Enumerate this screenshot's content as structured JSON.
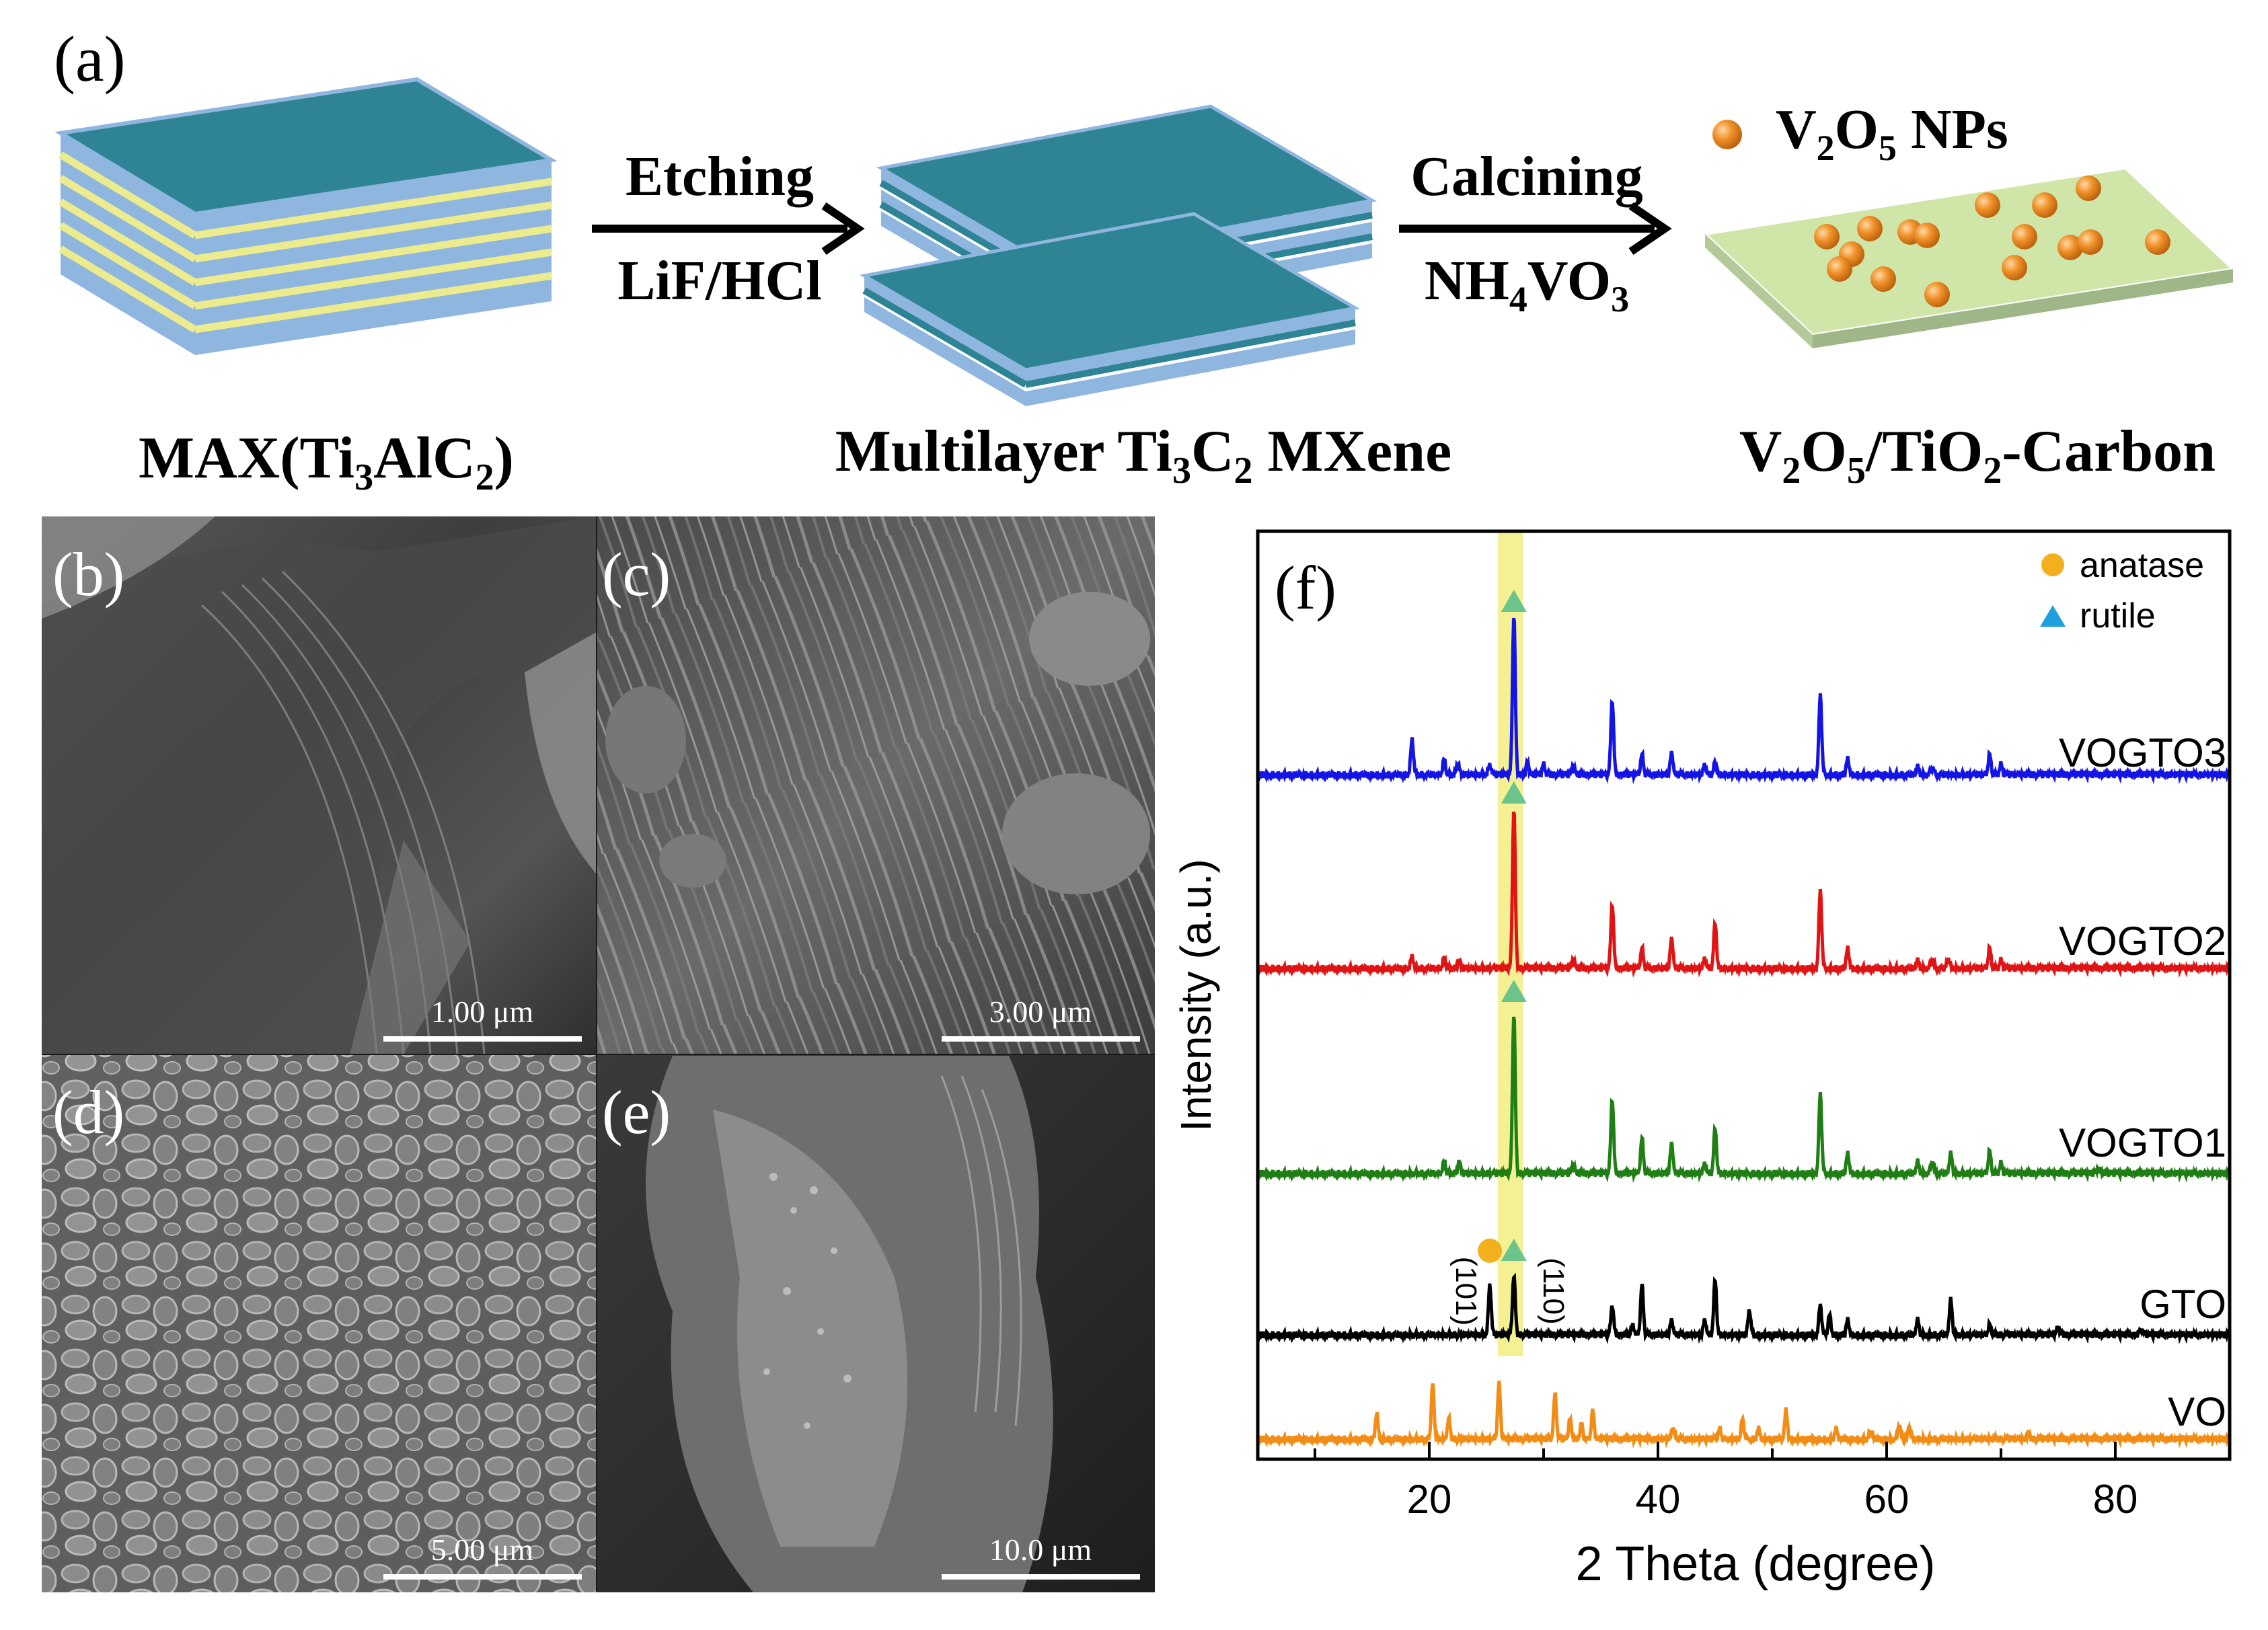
{
  "panels": {
    "a": "(a)",
    "b": "(b)",
    "c": "(c)",
    "d": "(d)",
    "e": "(e)",
    "f": "(f)"
  },
  "schematic": {
    "step1_top": "Etching",
    "step1_bottom": "LiF/HCl",
    "step2_top": "Calcining",
    "step2_bottom_main": "NH",
    "step2_bottom_sub1": "4",
    "step2_bottom_mid": "VO",
    "step2_bottom_sub2": "3",
    "np_label_v": "V",
    "np_label_sub1": "2",
    "np_label_o": "O",
    "np_label_sub2": "5",
    "np_label_rest": " NPs",
    "label_max_a": "MAX(Ti",
    "label_max_s1": "3",
    "label_max_b": "AlC",
    "label_max_s2": "2",
    "label_max_c": ")",
    "label_mx_a": "Multilayer Ti",
    "label_mx_s1": "3",
    "label_mx_b": "C",
    "label_mx_s2": "2",
    "label_mx_c": " MXene",
    "label_vo_a": "V",
    "label_vo_s1": "2",
    "label_vo_b": "O",
    "label_vo_s2": "5",
    "label_vo_c": "/TiO",
    "label_vo_s3": "2",
    "label_vo_d": "-Carbon"
  },
  "sem": {
    "scale_b": "1.00 μm",
    "scale_c": "3.00 μm",
    "scale_d": "5.00 μm",
    "scale_e": "10.0 μm"
  },
  "colors": {
    "layer_teal": "#2e8494",
    "layer_blue": "#8fb6df",
    "layer_yellow": "#ecec8e",
    "substrate_green": "#cfe6a8",
    "np_orange": "#f0922a",
    "highlight": "#f3f08a",
    "vogto3": "#1414e6",
    "vogto2": "#e01414",
    "vogto1": "#1f7f14",
    "gto": "#000000",
    "vo": "#f28c14",
    "anatase": "#f2b01e",
    "rutile": "#1ea0dc",
    "rutile_marker": "#6cc38c"
  },
  "chart_data": {
    "type": "line",
    "title": "",
    "xlabel": "2 Theta (degree)",
    "ylabel": "Intensity (a.u.)",
    "xlim": [
      5,
      90
    ],
    "x_ticks": [
      20,
      40,
      60,
      80
    ],
    "highlight_range": [
      26,
      28.2
    ],
    "legend": [
      {
        "symbol": "circle",
        "label": "anatase"
      },
      {
        "symbol": "triangle",
        "label": "rutile"
      }
    ],
    "annotations": [
      "(101)",
      "(110)"
    ],
    "series": [
      {
        "name": "VOGTO3",
        "color_key": "vogto3",
        "offset": 4,
        "peaks": [
          [
            18.5,
            0.35
          ],
          [
            21.3,
            0.15
          ],
          [
            22.5,
            0.12
          ],
          [
            25.3,
            0.1
          ],
          [
            27.4,
            1.6
          ],
          [
            28.6,
            0.12
          ],
          [
            30,
            0.1
          ],
          [
            32.6,
            0.1
          ],
          [
            36,
            0.75
          ],
          [
            38.6,
            0.2
          ],
          [
            41.2,
            0.22
          ],
          [
            44.1,
            0.1
          ],
          [
            45,
            0.12
          ],
          [
            54.2,
            0.8
          ],
          [
            56.6,
            0.16
          ],
          [
            62.7,
            0.08
          ],
          [
            64,
            0.08
          ],
          [
            69,
            0.2
          ],
          [
            70,
            0.1
          ]
        ]
      },
      {
        "name": "VOGTO2",
        "color_key": "vogto2",
        "offset": 3,
        "peaks": [
          [
            18.5,
            0.12
          ],
          [
            21.3,
            0.1
          ],
          [
            22.6,
            0.08
          ],
          [
            27.4,
            1.6
          ],
          [
            32.6,
            0.1
          ],
          [
            36,
            0.65
          ],
          [
            38.6,
            0.2
          ],
          [
            41.2,
            0.3
          ],
          [
            44.1,
            0.1
          ],
          [
            45,
            0.45
          ],
          [
            54.2,
            0.78
          ],
          [
            56.6,
            0.2
          ],
          [
            62.7,
            0.08
          ],
          [
            64,
            0.1
          ],
          [
            65.4,
            0.1
          ],
          [
            69,
            0.2
          ],
          [
            70,
            0.08
          ]
        ]
      },
      {
        "name": "VOGTO1",
        "color_key": "vogto1",
        "offset": 2,
        "peaks": [
          [
            21.3,
            0.12
          ],
          [
            22.6,
            0.12
          ],
          [
            27.4,
            1.6
          ],
          [
            32.6,
            0.1
          ],
          [
            36,
            0.75
          ],
          [
            38.6,
            0.35
          ],
          [
            41.2,
            0.3
          ],
          [
            44.1,
            0.1
          ],
          [
            45,
            0.45
          ],
          [
            54.2,
            0.8
          ],
          [
            56.6,
            0.2
          ],
          [
            62.7,
            0.12
          ],
          [
            64,
            0.12
          ],
          [
            65.6,
            0.2
          ],
          [
            69,
            0.22
          ],
          [
            70,
            0.1
          ],
          [
            78.5,
            0.06
          ]
        ]
      },
      {
        "name": "GTO",
        "color_key": "gto",
        "offset": 1,
        "peaks": [
          [
            25.3,
            0.5
          ],
          [
            27.4,
            0.6
          ],
          [
            36,
            0.3
          ],
          [
            37.8,
            0.1
          ],
          [
            38.6,
            0.5
          ],
          [
            41.2,
            0.15
          ],
          [
            44.1,
            0.15
          ],
          [
            45,
            0.55
          ],
          [
            48,
            0.25
          ],
          [
            54.2,
            0.3
          ],
          [
            55,
            0.2
          ],
          [
            56.6,
            0.15
          ],
          [
            62.7,
            0.15
          ],
          [
            65.6,
            0.35
          ],
          [
            69,
            0.1
          ],
          [
            75,
            0.08
          ],
          [
            82.3,
            0.06
          ]
        ]
      },
      {
        "name": "VO",
        "color_key": "vo",
        "offset": 0,
        "peaks": [
          [
            15.4,
            0.25
          ],
          [
            20.3,
            0.55
          ],
          [
            21.7,
            0.2
          ],
          [
            26.1,
            0.55
          ],
          [
            31,
            0.45
          ],
          [
            32.3,
            0.2
          ],
          [
            33.3,
            0.15
          ],
          [
            34.3,
            0.28
          ],
          [
            41.3,
            0.12
          ],
          [
            45.4,
            0.1
          ],
          [
            47.4,
            0.2
          ],
          [
            48.8,
            0.1
          ],
          [
            51.2,
            0.28
          ],
          [
            55.6,
            0.1
          ],
          [
            58.6,
            0.08
          ],
          [
            61.1,
            0.15
          ],
          [
            62,
            0.12
          ],
          [
            72.4,
            0.06
          ]
        ]
      }
    ],
    "series_labels": [
      "VOGTO3",
      "VOGTO2",
      "VOGTO1",
      "GTO",
      "VO"
    ]
  }
}
